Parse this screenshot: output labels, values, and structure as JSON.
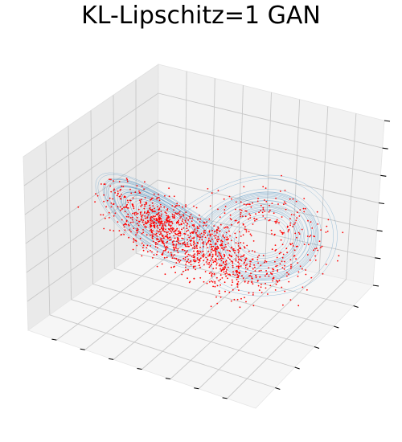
{
  "chart_data": {
    "type": "scatter",
    "title": "KL-Lipschitz=1 GAN",
    "projection": "3d",
    "xlabel": "",
    "ylabel": "",
    "zlabel": "",
    "tick_labels_shown": false,
    "grid": true,
    "series": [
      {
        "kind": "line",
        "color": "#1f77b4",
        "opacity": 0.6
      },
      {
        "kind": "points",
        "color": "#ff0000"
      }
    ]
  }
}
